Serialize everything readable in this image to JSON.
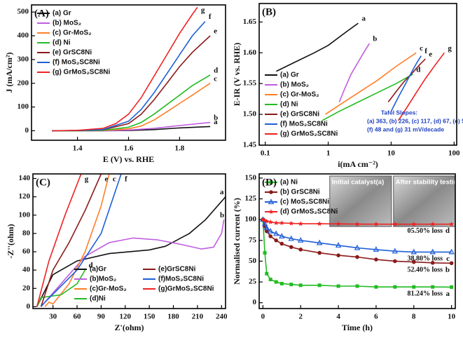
{
  "chart_data": [
    {
      "type": "line",
      "title": "(A)",
      "x_label": "E (V) vs. RHE",
      "y_label": "J (mA/cm²)",
      "xlim": [
        1.22,
        1.98
      ],
      "xticks": [
        1.4,
        1.6,
        1.8
      ],
      "ylim": [
        -40,
        530
      ],
      "yticks": [
        0,
        100,
        200,
        300,
        400,
        500
      ],
      "legend": "upper left",
      "legend_columns": 1,
      "series": [
        {
          "name": "(a) Gr",
          "label": "a",
          "color": "#111111",
          "x": [
            1.3,
            1.5,
            1.6,
            1.7,
            1.8,
            1.92
          ],
          "values": [
            0,
            0,
            1,
            5,
            12,
            18
          ]
        },
        {
          "name": "(b) MoS₂",
          "label": "b",
          "color": "#c05ce0",
          "x": [
            1.3,
            1.5,
            1.6,
            1.7,
            1.8,
            1.92
          ],
          "values": [
            0,
            0,
            3,
            10,
            22,
            35
          ]
        },
        {
          "name": "(c) Gr-MoS₂",
          "label": "c",
          "color": "#ff7f27",
          "x": [
            1.3,
            1.4,
            1.5,
            1.6,
            1.65,
            1.7,
            1.75,
            1.8,
            1.85,
            1.92
          ],
          "values": [
            0,
            0,
            1,
            8,
            20,
            45,
            80,
            115,
            150,
            200
          ]
        },
        {
          "name": "(d) Ni",
          "label": "d",
          "color": "#22bb22",
          "x": [
            1.3,
            1.4,
            1.5,
            1.6,
            1.65,
            1.7,
            1.75,
            1.8,
            1.85,
            1.92
          ],
          "values": [
            0,
            0,
            2,
            15,
            35,
            70,
            110,
            150,
            190,
            235
          ]
        },
        {
          "name": "(e) GrSC8Ni",
          "label": "e",
          "color": "#8b1a1a",
          "x": [
            1.3,
            1.4,
            1.5,
            1.6,
            1.65,
            1.7,
            1.75,
            1.8,
            1.85,
            1.92
          ],
          "values": [
            0,
            1,
            4,
            30,
            70,
            130,
            200,
            270,
            330,
            400
          ]
        },
        {
          "name": "(f) MoS₂SC8Ni",
          "label": "f",
          "color": "#1f5fd6",
          "x": [
            1.3,
            1.4,
            1.5,
            1.6,
            1.65,
            1.7,
            1.75,
            1.8,
            1.85,
            1.9
          ],
          "values": [
            0,
            1,
            5,
            40,
            90,
            160,
            240,
            320,
            400,
            460
          ]
        },
        {
          "name": "(g) GrMoS₂SC8Ni",
          "label": "g",
          "color": "#ee2222",
          "x": [
            1.3,
            1.4,
            1.5,
            1.55,
            1.6,
            1.65,
            1.7,
            1.75,
            1.8,
            1.85,
            1.87
          ],
          "values": [
            0,
            2,
            10,
            30,
            70,
            140,
            230,
            320,
            410,
            490,
            520
          ]
        }
      ]
    },
    {
      "type": "line",
      "title": "(B)",
      "x_label": "i(mA cm⁻²)",
      "y_label": "E-IR (V vs. RHE)",
      "xlog": true,
      "xlim": [
        0.08,
        110
      ],
      "xticks": [
        0.1,
        1,
        10,
        100
      ],
      "ylim": [
        1.45,
        1.68
      ],
      "yticks": [
        {
          "value": 1.45,
          "label": "1.45"
        },
        {
          "value": 1.5,
          "label": "1.50"
        },
        {
          "value": 1.55,
          "label": "1.55"
        },
        {
          "value": 1.6,
          "label": "1.60"
        },
        {
          "value": 1.65,
          "label": "1.65"
        }
      ],
      "legend": "lower left",
      "legend_columns": 1,
      "annotations": [
        "Tafel Slopes:",
        "(a) 363, (b) 226, (c) 117, (d) 67, (e) 51,",
        "(f) 48 and (g) 31 mV/decade"
      ],
      "series": [
        {
          "name": "(a) Gr",
          "label": "a",
          "color": "#111111",
          "x": [
            0.15,
            0.3,
            0.6,
            1,
            2,
            3
          ],
          "values": [
            1.57,
            1.585,
            1.6,
            1.612,
            1.635,
            1.648
          ]
        },
        {
          "name": "(b) MoS₂",
          "label": "b",
          "color": "#c05ce0",
          "x": [
            1.5,
            1.8,
            2.3,
            3,
            3.8,
            4.5
          ],
          "values": [
            1.52,
            1.54,
            1.565,
            1.585,
            1.603,
            1.615
          ]
        },
        {
          "name": "(c) Gr-MoS₂",
          "label": "c",
          "color": "#ff7f27",
          "x": [
            0.9,
            1.5,
            3,
            6,
            12,
            25
          ],
          "values": [
            1.5,
            1.515,
            1.535,
            1.555,
            1.578,
            1.6
          ]
        },
        {
          "name": "(d) Ni",
          "label": "d",
          "color": "#22bb22",
          "x": [
            0.8,
            1.5,
            3,
            6,
            12,
            22
          ],
          "values": [
            1.49,
            1.505,
            1.52,
            1.535,
            1.55,
            1.565
          ]
        },
        {
          "name": "(e) GrSC8Ni",
          "label": "e",
          "color": "#8b1a1a",
          "x": [
            9,
            12,
            16,
            22,
            28,
            35
          ],
          "values": [
            1.52,
            1.537,
            1.553,
            1.568,
            1.58,
            1.59
          ]
        },
        {
          "name": "(f) MoS₂SC8Ni",
          "label": "f",
          "color": "#1f5fd6",
          "x": [
            10,
            13,
            17,
            21,
            26,
            30
          ],
          "values": [
            1.505,
            1.528,
            1.55,
            1.568,
            1.585,
            1.595
          ]
        },
        {
          "name": "(g) GrMoS₂SC8Ni",
          "label": "g",
          "color": "#ee2222",
          "x": [
            13,
            18,
            25,
            35,
            50,
            70
          ],
          "values": [
            1.49,
            1.512,
            1.535,
            1.558,
            1.58,
            1.6
          ]
        }
      ]
    },
    {
      "type": "line",
      "title": "(C)",
      "x_label": "Z'(ohm)",
      "y_label": "-Z''(ohm)",
      "xlim": [
        5,
        245
      ],
      "xticks": [
        30,
        60,
        90,
        120,
        150,
        180,
        210,
        240
      ],
      "ylim": [
        -2,
        145
      ],
      "yticks": [
        0,
        20,
        40,
        60,
        80,
        100,
        120,
        140
      ],
      "legend": "lower right",
      "legend_columns": 2,
      "series": [
        {
          "name": "(a)Gr",
          "label": "a",
          "color": "#111111",
          "x": [
            10,
            30,
            60,
            100,
            150,
            170,
            200,
            220,
            245
          ],
          "values": [
            0,
            35,
            50,
            58,
            62,
            66,
            80,
            95,
            120
          ]
        },
        {
          "name": "(b)MoS₂",
          "label": "b",
          "color": "#c05ce0",
          "x": [
            15,
            40,
            70,
            100,
            130,
            160,
            190,
            215,
            230,
            240,
            243
          ],
          "values": [
            0,
            25,
            55,
            70,
            75,
            73,
            68,
            63,
            65,
            80,
            95
          ]
        },
        {
          "name": "(c)Gr-MoS₂",
          "label": "c",
          "color": "#ff7f27",
          "x": [
            20,
            25,
            30,
            50,
            70,
            90,
            100
          ],
          "values": [
            0,
            5,
            3,
            25,
            60,
            110,
            145
          ]
        },
        {
          "name": "(d)Ni",
          "label": "d",
          "color": "#22bb22",
          "x": [
            10,
            15,
            40,
            60,
            70
          ],
          "values": [
            0,
            10,
            13,
            25,
            40
          ]
        },
        {
          "name": "(e)GrSC8Ni",
          "label": "e",
          "color": "#8b1a1a",
          "x": [
            15,
            30,
            50,
            70,
            90
          ],
          "values": [
            0,
            40,
            70,
            105,
            145
          ]
        },
        {
          "name": "(f)MoS₂SC8Ni",
          "label": "f",
          "color": "#1f5fd6",
          "x": [
            15,
            20,
            60,
            90,
            115
          ],
          "values": [
            0,
            5,
            40,
            80,
            145
          ]
        },
        {
          "name": "(g)GrMoS₂SC8Ni",
          "label": "g",
          "color": "#ee2222",
          "x": [
            10,
            25,
            45,
            65
          ],
          "values": [
            0,
            50,
            100,
            145
          ]
        }
      ]
    },
    {
      "type": "line",
      "title": "(D)",
      "x_label": "Time (h)",
      "y_label": "Normalised current (%)",
      "xlim": [
        -0.2,
        10.2
      ],
      "xticks": [
        0,
        2,
        4,
        6,
        8,
        10
      ],
      "ylim": [
        -7,
        155
      ],
      "yticks": [
        0,
        25,
        50,
        75,
        100,
        125,
        150
      ],
      "legend": "upper left",
      "legend_columns": 1,
      "insets": [
        "Initial catalyst(a)",
        "After stability testing"
      ],
      "series": [
        {
          "name": "(a) Ni",
          "label": "a",
          "annotation": "81.24% loss",
          "marker": "square",
          "color": "#22bb22",
          "x": [
            0,
            0.1,
            0.2,
            0.4,
            0.7,
            1,
            1.5,
            2,
            3,
            4,
            5,
            6,
            7,
            8,
            9,
            10
          ],
          "values": [
            100,
            60,
            35,
            28,
            25,
            23,
            22,
            21,
            21,
            20,
            20,
            19,
            19,
            19,
            19,
            18.8
          ]
        },
        {
          "name": "(b) GrSC8Ni",
          "label": "b",
          "annotation": "52.40% loss",
          "marker": "circle",
          "color": "#8b1a1a",
          "x": [
            0,
            0.1,
            0.2,
            0.4,
            0.7,
            1,
            1.5,
            2,
            3,
            4,
            5,
            6,
            7,
            8,
            9,
            10
          ],
          "values": [
            100,
            92,
            86,
            80,
            75,
            71,
            67,
            64,
            60,
            57,
            55,
            52,
            50,
            49,
            48,
            47.6
          ]
        },
        {
          "name": "(c) MoS₂SC8Ni",
          "label": "c",
          "annotation": "38.80% loss",
          "marker": "triangle",
          "color": "#1f5fd6",
          "x": [
            0,
            0.1,
            0.2,
            0.4,
            0.7,
            1,
            1.5,
            2,
            3,
            4,
            5,
            6,
            7,
            8,
            9,
            10
          ],
          "values": [
            100,
            95,
            90,
            86,
            83,
            80,
            77,
            75,
            72,
            69,
            66,
            64,
            62,
            61,
            61,
            61
          ]
        },
        {
          "name": "(d) GrMoS₂SC8Ni",
          "label": "d",
          "annotation": "05.50% loss",
          "marker": "star",
          "color": "#ee2222",
          "x": [
            0,
            0.1,
            0.2,
            0.4,
            0.7,
            1,
            1.5,
            2,
            3,
            4,
            5,
            6,
            7,
            8,
            9,
            10
          ],
          "values": [
            100,
            99,
            98,
            97,
            96,
            96,
            95.5,
            95,
            95,
            94.8,
            94.6,
            94.5,
            94.5,
            94.5,
            94.5,
            94.5
          ]
        }
      ]
    }
  ]
}
